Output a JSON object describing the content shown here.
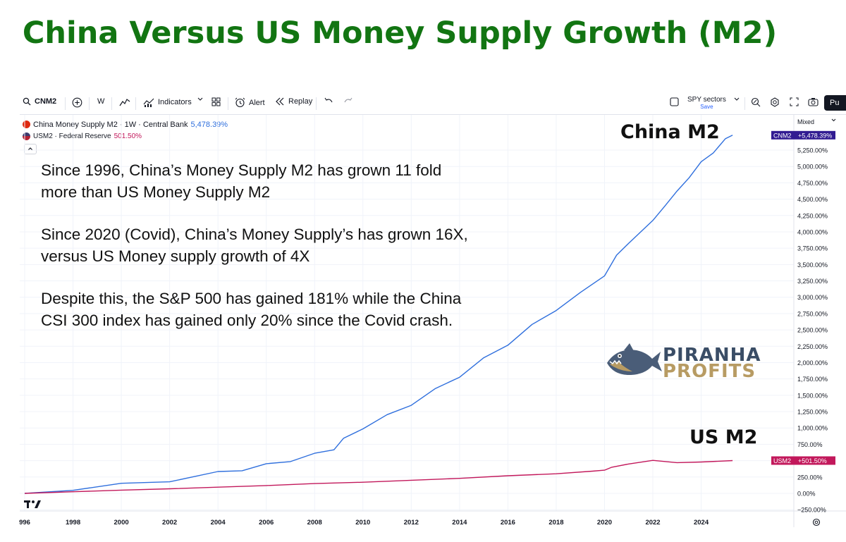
{
  "headline": "China Versus US Money Supply Growth (M2)",
  "toolbar": {
    "symbol": "CNM2",
    "interval": "W",
    "indicators_label": "Indicators",
    "alert_label": "Alert",
    "replay_label": "Replay",
    "layout_name": "SPY sectors",
    "layout_sub": "Save",
    "publish_label": "Pu"
  },
  "legend": {
    "primary": {
      "name": "China Money Supply M2 · 1W · Central Bank",
      "value": "5,478.39%"
    },
    "secondary": {
      "name": "USM2 · Federal Reserve",
      "value": "501.50%"
    }
  },
  "annotation": {
    "p1": "Since 1996, China’s Money Supply M2 has grown 11 fold more than US Money Supply M2",
    "p2": "Since 2020 (Covid), China’s Money Supply’s has grown 16X, versus US Money supply growth of 4X",
    "p3": "Despite this, the S&P 500 has gained 181% while the China CSI 300 index has gained only 20% since the Covid crash."
  },
  "labels": {
    "china": "China M2",
    "us": "US M2"
  },
  "logo": {
    "line1": "PIRANHA",
    "line2": "PROFITS"
  },
  "scale_mode": "Mixed",
  "colors": {
    "china": "#2f6fdd",
    "us": "#c2185b",
    "headline": "#127512",
    "china_badge": "#311b92",
    "us_badge": "#c2185b"
  },
  "chart_data": {
    "type": "line",
    "title": "China Versus US Money Supply Growth (M2)",
    "xlabel": "",
    "ylabel": "",
    "x_ticks": [
      "996",
      "1998",
      "2000",
      "2002",
      "2004",
      "2006",
      "2008",
      "2010",
      "2012",
      "2014",
      "2016",
      "2018",
      "2020",
      "2022",
      "2024"
    ],
    "y_ticks": [
      "−250.00%",
      "0.00%",
      "250.00%",
      "500.00%",
      "750.00%",
      "1,000.00%",
      "1,250.00%",
      "1,500.00%",
      "1,750.00%",
      "2,000.00%",
      "2,250.00%",
      "2,500.00%",
      "2,750.00%",
      "3,000.00%",
      "3,250.00%",
      "3,500.00%",
      "3,750.00%",
      "4,000.00%",
      "4,250.00%",
      "4,500.00%",
      "4,750.00%",
      "5,000.00%",
      "5,250.00%"
    ],
    "ylim": [
      -250,
      5500
    ],
    "xlim": [
      1996,
      2026.4
    ],
    "series": [
      {
        "name": "CNM2",
        "badge": "+5,478.39%",
        "x": [
          1996,
          1998,
          2000,
          2002,
          2004,
          2005,
          2006,
          2007,
          2008,
          2008.8,
          2009.2,
          2010,
          2011,
          2012,
          2013,
          2014,
          2015,
          2016,
          2017,
          2018,
          2019,
          2020,
          2020.5,
          2021,
          2022,
          2022.5,
          2023,
          2023.5,
          2024,
          2024.5,
          2025,
          2025.3
        ],
        "y": [
          0,
          70,
          130,
          200,
          310,
          370,
          430,
          510,
          590,
          690,
          820,
          1010,
          1180,
          1370,
          1580,
          1800,
          2050,
          2290,
          2560,
          2820,
          3050,
          3350,
          3620,
          3850,
          4150,
          4420,
          4600,
          4850,
          5050,
          5230,
          5400,
          5478.39
        ]
      },
      {
        "name": "USM2",
        "badge": "+501.50%",
        "x": [
          1996,
          1998,
          2000,
          2002,
          2004,
          2006,
          2008,
          2010,
          2012,
          2014,
          2016,
          2018,
          2019.5,
          2020,
          2020.3,
          2021,
          2022,
          2023,
          2024,
          2025.3
        ],
        "y": [
          0,
          25,
          50,
          70,
          95,
          120,
          150,
          170,
          200,
          230,
          270,
          300,
          340,
          355,
          400,
          450,
          505,
          470,
          480,
          501.5
        ]
      }
    ]
  }
}
